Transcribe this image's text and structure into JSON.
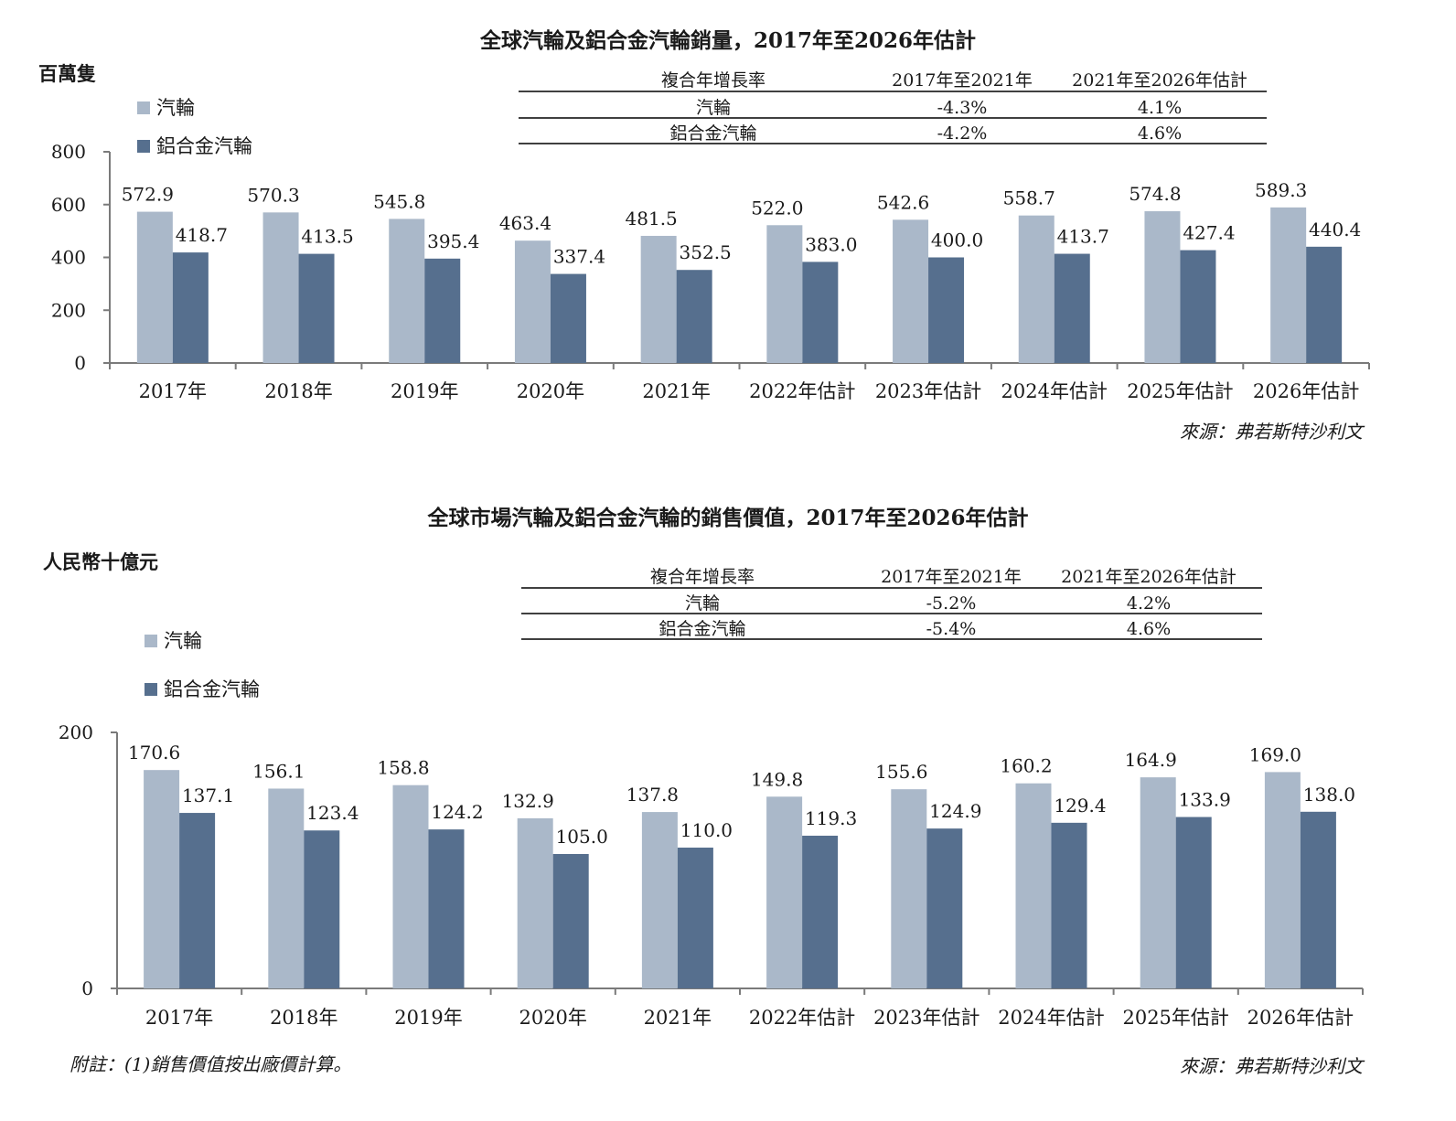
{
  "colors": {
    "wheels": "#aab8c9",
    "alloy": "#566f8e",
    "axis": "#7a7a7a",
    "rule": "#000000"
  },
  "chart_data": [
    {
      "type": "bar",
      "title": "全球汽輪及鋁合金汽輪銷量，2017年至2026年估計",
      "ylabel": "百萬隻",
      "ylim": [
        0,
        800
      ],
      "yticks": [
        0,
        200,
        400,
        600,
        800
      ],
      "categories": [
        "2017年",
        "2018年",
        "2019年",
        "2020年",
        "2021年",
        "2022年估計",
        "2023年估計",
        "2024年估計",
        "2025年估計",
        "2026年估計"
      ],
      "series": [
        {
          "name": "汽輪",
          "values": [
            572.9,
            570.3,
            545.8,
            463.4,
            481.5,
            522.0,
            542.6,
            558.7,
            574.8,
            589.3
          ],
          "labels": [
            "572.9",
            "570.3",
            "545.8",
            "463.4",
            "481.5",
            "522.0",
            "542.6",
            "558.7",
            "574.8",
            "589.3"
          ]
        },
        {
          "name": "鋁合金汽輪",
          "values": [
            418.7,
            413.5,
            395.4,
            337.4,
            352.5,
            383.0,
            400.0,
            413.7,
            427.4,
            440.4
          ],
          "labels": [
            "418.7",
            "413.5",
            "395.4",
            "337.4",
            "352.5",
            "383.0",
            "400.0",
            "413.7",
            "427.4",
            "440.4"
          ]
        }
      ],
      "legend": "top-left",
      "grid": false,
      "cagr_table": {
        "headers": [
          "複合年增長率",
          "2017年至2021年",
          "2021年至2026年估計"
        ],
        "rows": [
          [
            "汽輪",
            "-4.3%",
            "4.1%"
          ],
          [
            "鋁合金汽輪",
            "-4.2%",
            "4.6%"
          ]
        ]
      },
      "source": "來源：弗若斯特沙利文"
    },
    {
      "type": "bar",
      "title": "全球市場汽輪及鋁合金汽輪的銷售價值，2017年至2026年估計",
      "ylabel": "人民幣十億元",
      "ylim": [
        0,
        200
      ],
      "yticks": [
        0,
        200
      ],
      "categories": [
        "2017年",
        "2018年",
        "2019年",
        "2020年",
        "2021年",
        "2022年估計",
        "2023年估計",
        "2024年估計",
        "2025年估計",
        "2026年估計"
      ],
      "series": [
        {
          "name": "汽輪",
          "values": [
            170.6,
            156.1,
            158.8,
            132.9,
            137.8,
            149.8,
            155.6,
            160.2,
            164.9,
            169.0
          ],
          "labels": [
            "170.6",
            "156.1",
            "158.8",
            "132.9",
            "137.8",
            "149.8",
            "155.6",
            "160.2",
            "164.9",
            "169.0"
          ]
        },
        {
          "name": "鋁合金汽輪",
          "values": [
            137.1,
            123.4,
            124.2,
            105.0,
            110.0,
            119.3,
            124.9,
            129.4,
            133.9,
            138.0
          ],
          "labels": [
            "137.1",
            "123.4",
            "124.2",
            "105.0",
            "110.0",
            "119.3",
            "124.9",
            "129.4",
            "133.9",
            "138.0"
          ]
        }
      ],
      "legend": "top-left",
      "grid": false,
      "cagr_table": {
        "headers": [
          "複合年增長率",
          "2017年至2021年",
          "2021年至2026年估計"
        ],
        "rows": [
          [
            "汽輪",
            "-5.2%",
            "4.2%"
          ],
          [
            "鋁合金汽輪",
            "-5.4%",
            "4.6%"
          ]
        ]
      },
      "footnote": "附註：(1)銷售價值按出廠價計算。",
      "source": "來源：弗若斯特沙利文"
    }
  ]
}
